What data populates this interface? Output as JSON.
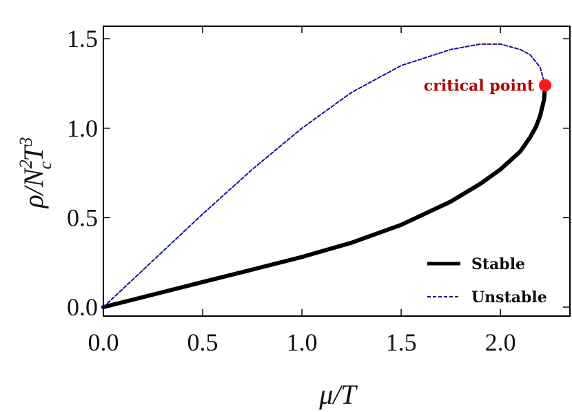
{
  "chart_data": {
    "type": "line",
    "xlabel": "μ/T",
    "ylabel": "ρ/N",
    "ylabel_sup": "2",
    "ylabel_sub": "c",
    "ylabel_T": "T",
    "ylabel_sup3": "3",
    "xlim": [
      0.0,
      2.35
    ],
    "ylim": [
      -0.05,
      1.57
    ],
    "xticks": [
      "0.0",
      "0.5",
      "1.0",
      "1.5",
      "2.0"
    ],
    "yticks": [
      "0.0",
      "0.5",
      "1.0",
      "1.5"
    ],
    "grid": false,
    "legend_position": "bottom-right",
    "series": [
      {
        "name": "Stable",
        "style": "solid",
        "color": "#000000",
        "x": [
          0.0,
          0.25,
          0.5,
          0.75,
          1.0,
          1.25,
          1.5,
          1.75,
          1.9,
          2.0,
          2.1,
          2.15,
          2.18,
          2.2,
          2.22,
          2.225
        ],
        "y": [
          0.0,
          0.07,
          0.14,
          0.21,
          0.28,
          0.36,
          0.46,
          0.59,
          0.69,
          0.77,
          0.87,
          0.95,
          1.01,
          1.07,
          1.16,
          1.24
        ]
      },
      {
        "name": "Unstable",
        "style": "dashed",
        "color": "#1010a0",
        "x": [
          0.0,
          0.25,
          0.5,
          0.75,
          1.0,
          1.25,
          1.5,
          1.75,
          1.9,
          2.0,
          2.1,
          2.15,
          2.2,
          2.225
        ],
        "y": [
          0.0,
          0.26,
          0.52,
          0.77,
          1.0,
          1.2,
          1.35,
          1.44,
          1.47,
          1.47,
          1.44,
          1.41,
          1.34,
          1.24
        ]
      }
    ],
    "critical_point": {
      "label": "critical point",
      "x": 2.225,
      "y": 1.24,
      "color": "#ff1a1a",
      "label_color": "#b00000"
    }
  }
}
